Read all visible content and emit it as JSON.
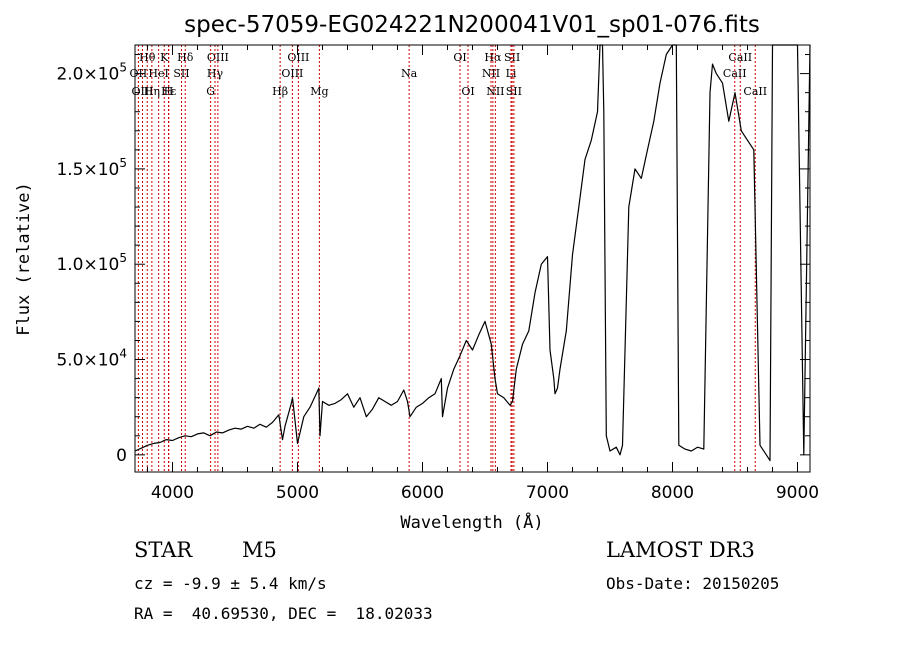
{
  "chart_data": {
    "type": "line",
    "title": "spec-57059-EG024221N200041V01_sp01-076.fits",
    "xlabel": "Wavelength (Å)",
    "ylabel": "Flux (relative)",
    "xlim": [
      3700,
      9100
    ],
    "ylim": [
      -9000,
      215000
    ],
    "x_ticks": [
      {
        "value": 4000,
        "label": "4000"
      },
      {
        "value": 5000,
        "label": "5000"
      },
      {
        "value": 6000,
        "label": "6000"
      },
      {
        "value": 7000,
        "label": "7000"
      },
      {
        "value": 8000,
        "label": "8000"
      },
      {
        "value": 9000,
        "label": "9000"
      }
    ],
    "y_ticks": [
      {
        "value": 0,
        "mantissa": "0",
        "exponent": ""
      },
      {
        "value": 50000,
        "mantissa": "5.0×10",
        "exponent": "4"
      },
      {
        "value": 100000,
        "mantissa": "1.0×10",
        "exponent": "5"
      },
      {
        "value": 150000,
        "mantissa": "1.5×10",
        "exponent": "5"
      },
      {
        "value": 200000,
        "mantissa": "2.0×10",
        "exponent": "5"
      }
    ],
    "series": [
      {
        "name": "flux",
        "x": [
          3700,
          3750,
          3800,
          3850,
          3900,
          3950,
          4000,
          4050,
          4100,
          4150,
          4200,
          4250,
          4300,
          4350,
          4400,
          4450,
          4500,
          4550,
          4600,
          4650,
          4700,
          4750,
          4800,
          4850,
          4880,
          4900,
          4950,
          4960,
          5000,
          5050,
          5100,
          5150,
          5170,
          5180,
          5200,
          5250,
          5300,
          5350,
          5400,
          5450,
          5500,
          5550,
          5600,
          5650,
          5700,
          5750,
          5800,
          5850,
          5880,
          5900,
          5950,
          6000,
          6050,
          6100,
          6150,
          6160,
          6200,
          6250,
          6300,
          6350,
          6400,
          6450,
          6500,
          6550,
          6580,
          6600,
          6650,
          6700,
          6720,
          6750,
          6800,
          6850,
          6900,
          6950,
          7000,
          7020,
          7050,
          7060,
          7080,
          7100,
          7150,
          7200,
          7250,
          7300,
          7350,
          7400,
          7420,
          7440,
          7450,
          7470,
          7500,
          7550,
          7580,
          7600,
          7650,
          7700,
          7750,
          7800,
          7850,
          7900,
          7950,
          8000,
          8030,
          8050,
          8100,
          8150,
          8200,
          8250,
          8300,
          8320,
          8350,
          8400,
          8450,
          8500,
          8550,
          8600,
          8650,
          8700,
          8750,
          8780,
          8800,
          8830,
          8850,
          8880,
          9000,
          9050,
          9100
        ],
        "y": [
          2000,
          3500,
          5000,
          6000,
          6500,
          8000,
          7500,
          9000,
          10000,
          9500,
          11000,
          11500,
          10000,
          12000,
          11500,
          13000,
          14000,
          13500,
          15000,
          14000,
          16000,
          14500,
          17000,
          21000,
          8000,
          15000,
          27000,
          30000,
          6000,
          20000,
          25000,
          32000,
          35000,
          10000,
          28000,
          26000,
          27000,
          29000,
          32000,
          25000,
          30000,
          20000,
          24000,
          30000,
          28000,
          26000,
          28000,
          34000,
          28000,
          20000,
          25000,
          27000,
          30000,
          32000,
          40000,
          20000,
          35000,
          45000,
          52000,
          60000,
          55000,
          63000,
          70000,
          58000,
          40000,
          32000,
          30000,
          26000,
          28000,
          45000,
          58000,
          65000,
          85000,
          100000,
          104000,
          55000,
          40000,
          32000,
          35000,
          45000,
          65000,
          105000,
          130000,
          155000,
          165000,
          180000,
          215000,
          215000,
          180000,
          10000,
          2000,
          4000,
          0,
          5000,
          130000,
          150000,
          145000,
          160000,
          175000,
          195000,
          210000,
          215000,
          215000,
          5000,
          3000,
          2000,
          4000,
          3000,
          190000,
          205000,
          200000,
          195000,
          175000,
          190000,
          170000,
          165000,
          160000,
          5000,
          0,
          -3000,
          215000,
          215000,
          215000,
          215000,
          215000,
          0,
          215000
        ],
        "color": "#000000"
      }
    ],
    "spectral_lines": [
      {
        "label": "Hθ",
        "wavelength": 3798,
        "row": 1
      },
      {
        "label": "OII",
        "wavelength": 3727,
        "row": 2
      },
      {
        "label": "OIII",
        "wavelength": 3760,
        "row": 3
      },
      {
        "label": "K",
        "wavelength": 3934,
        "row": 1
      },
      {
        "label": "HeI",
        "wavelength": 3889,
        "row": 2
      },
      {
        "label": "Hε",
        "wavelength": 3970,
        "row": 3
      },
      {
        "label": "SII",
        "wavelength": 4072,
        "row": 2
      },
      {
        "label": "H",
        "wavelength": 3968,
        "row": 3
      },
      {
        "label": "Hη",
        "wavelength": 3835,
        "row": 3
      },
      {
        "label": "Hδ",
        "wavelength": 4102,
        "row": 1
      },
      {
        "label": "OIII",
        "wavelength": 4363,
        "row": 1
      },
      {
        "label": "Hγ",
        "wavelength": 4340,
        "row": 2
      },
      {
        "label": "G",
        "wavelength": 4305,
        "row": 3
      },
      {
        "label": "OIII",
        "wavelength": 5007,
        "row": 1
      },
      {
        "label": "OIII",
        "wavelength": 4959,
        "row": 2
      },
      {
        "label": "Hβ",
        "wavelength": 4861,
        "row": 3
      },
      {
        "label": "Mg",
        "wavelength": 5175,
        "row": 3
      },
      {
        "label": "Na",
        "wavelength": 5893,
        "row": 2
      },
      {
        "label": "OI",
        "wavelength": 6300,
        "row": 1
      },
      {
        "label": "OI",
        "wavelength": 6364,
        "row": 3
      },
      {
        "label": "Hα",
        "wavelength": 6563,
        "row": 1
      },
      {
        "label": "SII",
        "wavelength": 6717,
        "row": 1
      },
      {
        "label": "NII",
        "wavelength": 6548,
        "row": 2
      },
      {
        "label": "Li",
        "wavelength": 6708,
        "row": 2
      },
      {
        "label": "NII",
        "wavelength": 6583,
        "row": 3
      },
      {
        "label": "SII",
        "wavelength": 6731,
        "row": 3
      },
      {
        "label": "CaII",
        "wavelength": 8542,
        "row": 1
      },
      {
        "label": "CaII",
        "wavelength": 8498,
        "row": 2
      },
      {
        "label": "CaII",
        "wavelength": 8662,
        "row": 3
      }
    ]
  },
  "info": {
    "object_class": "STAR",
    "subclass": "M5",
    "survey": "LAMOST DR3",
    "redshift_line": "cz = -9.9 ± 5.4 km/s",
    "obs_date": "Obs-Date: 20150205",
    "coords_line": "RA =  40.69530, DEC =  18.02033"
  }
}
